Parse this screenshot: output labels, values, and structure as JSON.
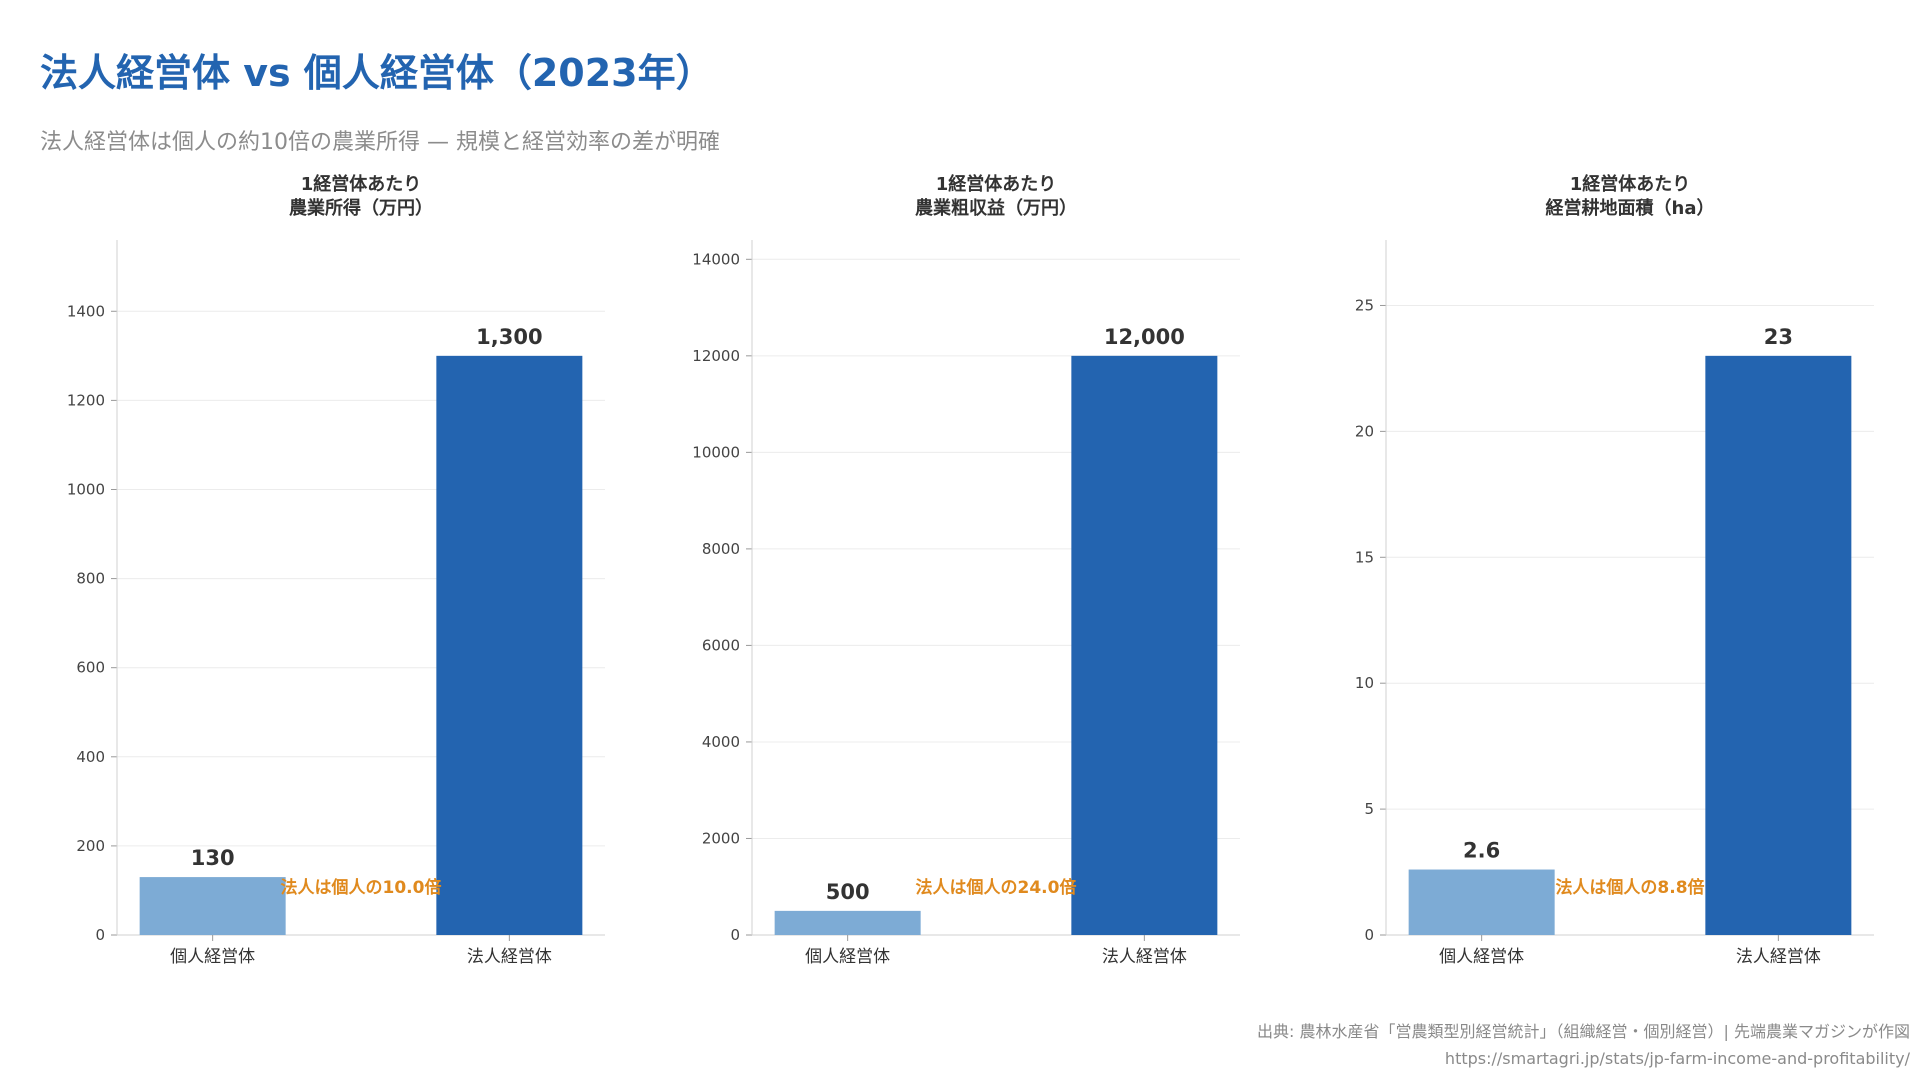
{
  "title": "法人経営体 vs 個人経営体（2023年）",
  "subtitle": "法人経営体は個人の約10倍の農業所得 — 規模と経営効率の差が明確",
  "colors": {
    "corporate": "#2364b0",
    "individual": "#7dabd5",
    "annotation": "#e08a1e",
    "title": "#2364b0"
  },
  "chart_data": [
    {
      "type": "bar",
      "title_line1": "1経営体あたり",
      "title_line2": "農業所得（万円）",
      "categories": [
        "個人経営体",
        "法人経営体"
      ],
      "values": [
        130,
        1300
      ],
      "value_labels": [
        "130",
        "1,300"
      ],
      "ylim": [
        0,
        1560
      ],
      "yticks": [
        0,
        200,
        400,
        600,
        800,
        1000,
        1200,
        1400
      ],
      "annotation": "法人は個人の10.0倍"
    },
    {
      "type": "bar",
      "title_line1": "1経営体あたり",
      "title_line2": "農業粗収益（万円）",
      "categories": [
        "個人経営体",
        "法人経営体"
      ],
      "values": [
        500,
        12000
      ],
      "value_labels": [
        "500",
        "12,000"
      ],
      "ylim": [
        0,
        14400
      ],
      "yticks": [
        0,
        2000,
        4000,
        6000,
        8000,
        10000,
        12000,
        14000
      ],
      "annotation": "法人は個人の24.0倍"
    },
    {
      "type": "bar",
      "title_line1": "1経営体あたり",
      "title_line2": "経営耕地面積（ha）",
      "categories": [
        "個人経営体",
        "法人経営体"
      ],
      "values": [
        2.6,
        23
      ],
      "value_labels": [
        "2.6",
        "23"
      ],
      "ylim": [
        0,
        27.6
      ],
      "yticks": [
        0,
        5,
        10,
        15,
        20,
        25
      ],
      "annotation": "法人は個人の8.8倍"
    }
  ],
  "source": {
    "line1": "出典: 農林水産省「営農類型別経営統計」（組織経営・個別経営）| 先端農業マガジンが作図",
    "line2": "https://smartagri.jp/stats/jp-farm-income-and-profitability/"
  }
}
